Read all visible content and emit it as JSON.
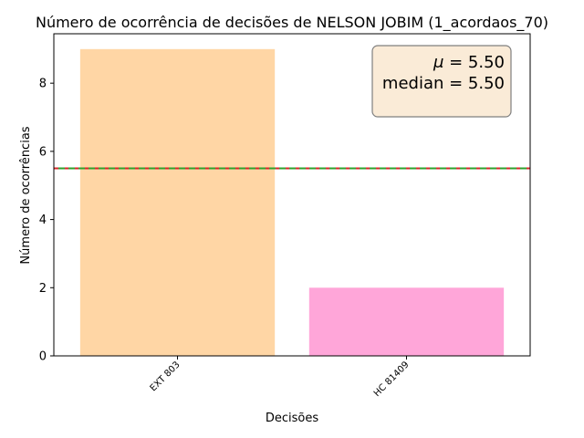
{
  "chart_data": {
    "type": "bar",
    "title": "Número de ocorrência de decisões de NELSON JOBIM (1_acordaos_70)",
    "xlabel": "Decisões",
    "ylabel": "Número de ocorrências",
    "categories": [
      "EXT 803",
      "HC 81409"
    ],
    "values": [
      9,
      2
    ],
    "bar_colors": [
      "#ffd6a5",
      "#ffa6d9"
    ],
    "ylim": [
      0,
      9.45
    ],
    "yticks": [
      0,
      2,
      4,
      6,
      8
    ],
    "mean": 5.5,
    "median": 5.5,
    "mean_line_color": "#d62728",
    "median_line_color": "#2ca02c",
    "stats_box": {
      "mean_symbol": "μ",
      "mean_text": " = 5.50",
      "median_text": "median = 5.50",
      "background": "#faebd7",
      "border": "#7f7f7f"
    },
    "grid": false
  }
}
